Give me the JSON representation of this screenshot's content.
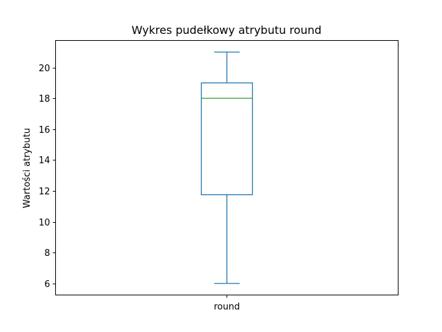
{
  "chart_data": {
    "type": "box",
    "title": "Wykres pudełkowy atrybutu round",
    "xlabel": "",
    "ylabel": "Wartości atrybutu",
    "categories": [
      "round"
    ],
    "boxes": [
      {
        "category": "round",
        "whisker_low": 6,
        "q1": 11.75,
        "median": 18,
        "q3": 19,
        "whisker_high": 21
      }
    ],
    "ylim": [
      5.25,
      21.75
    ],
    "yticks": [
      6,
      8,
      10,
      12,
      14,
      16,
      18,
      20
    ],
    "grid": false,
    "colors": {
      "box": "#1f77b4",
      "median": "#2ca02c",
      "axes": "#000000"
    }
  }
}
